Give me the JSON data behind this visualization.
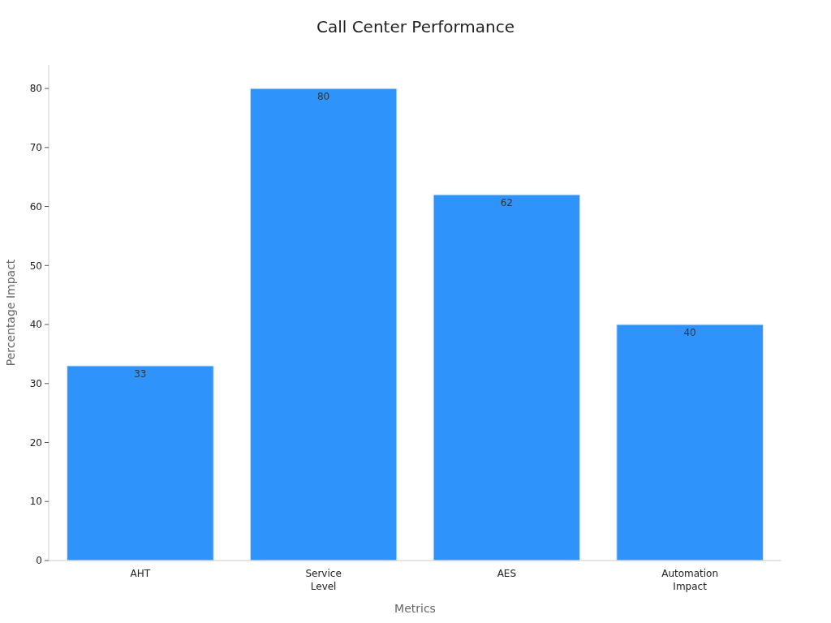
{
  "chart_data": {
    "type": "bar",
    "title": "Call Center Performance",
    "xlabel": "Metrics",
    "ylabel": "Percentage Impact",
    "categories": [
      "AHT",
      "Service Level",
      "AES",
      "Automation Impact"
    ],
    "values": [
      33,
      80,
      62,
      40
    ],
    "color": "#2e93fa",
    "ylim": [
      0,
      84
    ],
    "yticks": [
      0,
      10,
      20,
      30,
      40,
      50,
      60,
      70,
      80
    ],
    "grid": false,
    "data_labels": true
  }
}
